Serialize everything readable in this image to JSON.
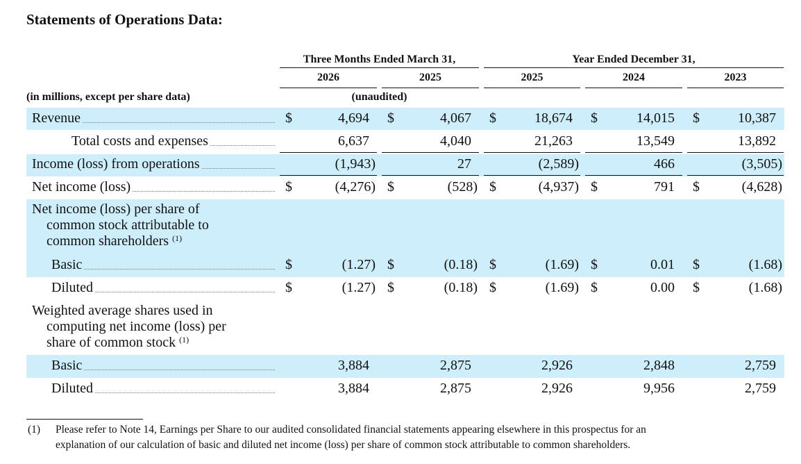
{
  "title": "Statements of Operations Data:",
  "header": {
    "group1": "Three Months Ended March 31,",
    "group2": "Year Ended December 31,",
    "years": [
      "2026",
      "2025",
      "2025",
      "2024",
      "2023"
    ],
    "units": "(in millions, except per share data)",
    "unaudited": "(unaudited)"
  },
  "rows": [
    {
      "label": "Revenue",
      "dollar": true,
      "values": [
        "4,694",
        "4,067",
        "18,674",
        "14,015",
        "10,387"
      ]
    },
    {
      "label": "Total costs and expenses",
      "dollar": false,
      "values": [
        "6,637",
        "4,040",
        "21,263",
        "13,549",
        "13,892"
      ]
    },
    {
      "label": "Income (loss) from operations",
      "dollar": false,
      "values": [
        "(1,943)",
        "27",
        "(2,589)",
        "466",
        "(3,505)"
      ]
    },
    {
      "label": "Net income (loss)",
      "dollar": true,
      "values": [
        "(4,276)",
        "(528)",
        "(4,937)",
        "791",
        "(4,628)"
      ]
    },
    {
      "label": "Basic",
      "dollar": true,
      "values": [
        "(1.27)",
        "(0.18)",
        "(1.69)",
        "0.01",
        "(1.68)"
      ]
    },
    {
      "label": "Diluted",
      "dollar": true,
      "values": [
        "(1.27)",
        "(0.18)",
        "(1.69)",
        "0.00",
        "(1.68)"
      ]
    },
    {
      "label": "Basic",
      "dollar": false,
      "values": [
        "3,884",
        "2,875",
        "2,926",
        "2,848",
        "2,759"
      ]
    },
    {
      "label": "Diluted",
      "dollar": false,
      "values": [
        "3,884",
        "2,875",
        "2,926",
        "9,956",
        "2,759"
      ]
    }
  ],
  "sections": {
    "eps": [
      "Net income (loss) per share of",
      "common stock attributable to",
      "common shareholders"
    ],
    "shares": [
      "Weighted average shares used in",
      "computing net income (loss) per",
      "share of common stock"
    ],
    "footnote_ref": "(1)"
  },
  "currency_symbol": "$",
  "footnote": {
    "marker": "(1)",
    "lines": [
      "Please refer to Note 14, Earnings per Share to our audited consolidated financial statements appearing elsewhere in this prospectus for an",
      "explanation of our calculation of basic and diluted net income (loss) per share of common stock attributable to common shareholders."
    ]
  },
  "colors": {
    "band": "#cdeefa",
    "text": "#111111"
  }
}
